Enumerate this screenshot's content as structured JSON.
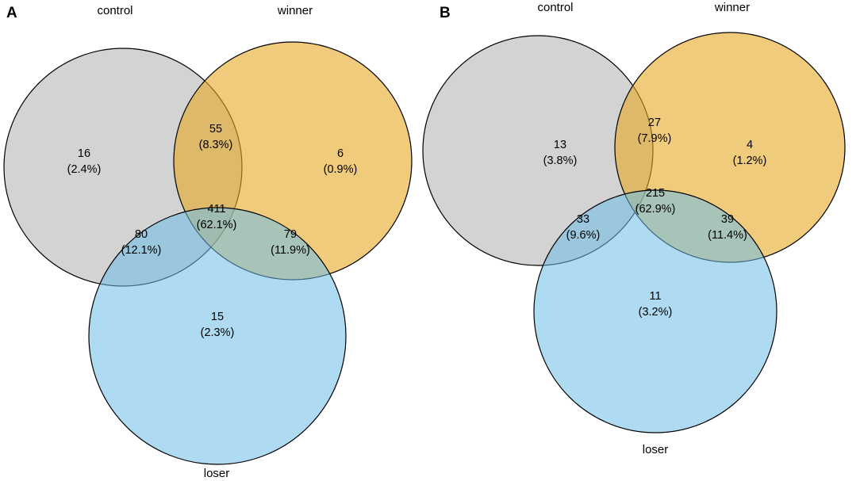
{
  "panels": [
    {
      "panel_label": "A",
      "sets": {
        "control": {
          "label": "control",
          "color": "#A8A8A8"
        },
        "winner": {
          "label": "winner",
          "color": "#E8A925"
        },
        "loser": {
          "label": "loser",
          "color": "#6CBEE8"
        }
      },
      "regions": {
        "control_only": {
          "count": "16",
          "percent": "(2.4%)"
        },
        "winner_only": {
          "count": "6",
          "percent": "(0.9%)"
        },
        "control_winner": {
          "count": "55",
          "percent": "(8.3%)"
        },
        "all_three": {
          "count": "411",
          "percent": "(62.1%)"
        },
        "control_loser": {
          "count": "80",
          "percent": "(12.1%)"
        },
        "winner_loser": {
          "count": "79",
          "percent": "(11.9%)"
        },
        "loser_only": {
          "count": "15",
          "percent": "(2.3%)"
        }
      }
    },
    {
      "panel_label": "B",
      "sets": {
        "control": {
          "label": "control",
          "color": "#A8A8A8"
        },
        "winner": {
          "label": "winner",
          "color": "#E8A925"
        },
        "loser": {
          "label": "loser",
          "color": "#6CBEE8"
        }
      },
      "regions": {
        "control_only": {
          "count": "13",
          "percent": "(3.8%)"
        },
        "winner_only": {
          "count": "4",
          "percent": "(1.2%)"
        },
        "control_winner": {
          "count": "27",
          "percent": "(7.9%)"
        },
        "all_three": {
          "count": "215",
          "percent": "(62.9%)"
        },
        "control_loser": {
          "count": "33",
          "percent": "(9.6%)"
        },
        "winner_loser": {
          "count": "39",
          "percent": "(11.4%)"
        },
        "loser_only": {
          "count": "11",
          "percent": "(3.2%)"
        }
      }
    }
  ]
}
